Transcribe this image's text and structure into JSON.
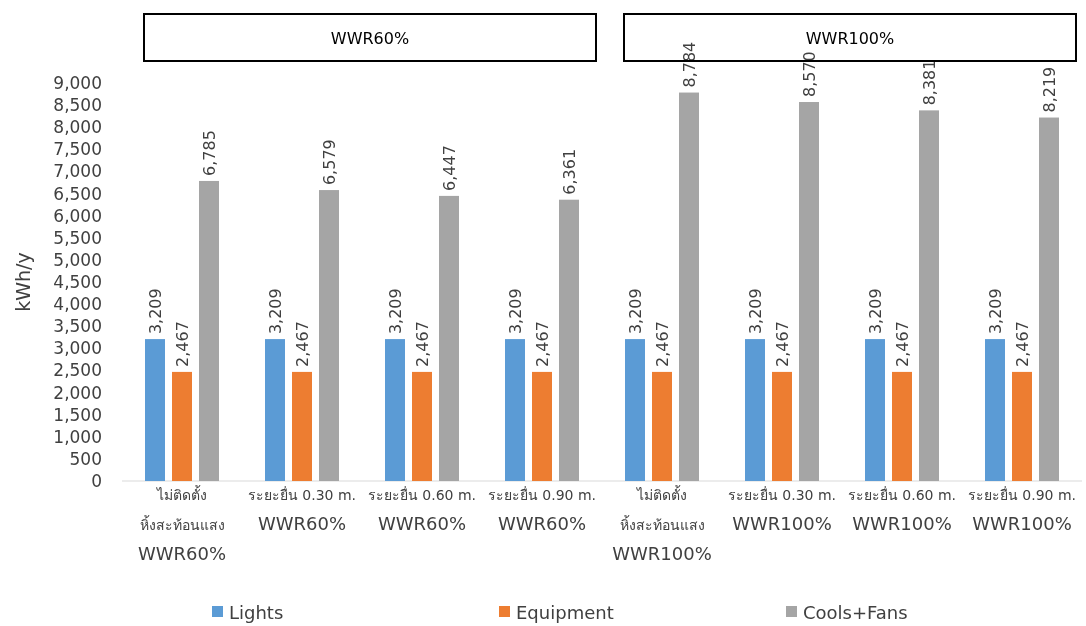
{
  "chart_data": {
    "type": "bar",
    "ylabel": "kWh/y",
    "categories": [
      "ไม่ติดตั้ง\nหิ้งสะท้อนแสง\nWWR60%",
      "ระยะยื่น 0.30 m.\nWWR60%",
      "ระยะยื่น 0.60 m.\nWWR60%",
      "ระยะยื่น 0.90 m.\nWWR60%",
      "ไม่ติดตั้ง\nหิ้งสะท้อนแสง\nWWR100%",
      "ระยะยื่น 0.30 m.\nWWR100%",
      "ระยะยื่น 0.60 m.\nWWR100%",
      "ระยะยื่น 0.90 m.\nWWR100%"
    ],
    "series": [
      {
        "name": "Lights",
        "color": "#5b9bd5",
        "values": [
          3209,
          3209,
          3209,
          3209,
          3209,
          3209,
          3209,
          3209
        ],
        "value_labels": [
          "3,209",
          "3,209",
          "3,209",
          "3,209",
          "3,209",
          "3,209",
          "3,209",
          "3,209"
        ]
      },
      {
        "name": "Equipment",
        "color": "#ed7d31",
        "values": [
          2467,
          2467,
          2467,
          2467,
          2467,
          2467,
          2467,
          2467
        ],
        "value_labels": [
          "2,467",
          "2,467",
          "2,467",
          "2,467",
          "2,467",
          "2,467",
          "2,467",
          "2,467"
        ]
      },
      {
        "name": "Cools+Fans",
        "color": "#a5a5a5",
        "values": [
          6785,
          6579,
          6447,
          6361,
          8784,
          8570,
          8381,
          8219
        ],
        "value_labels": [
          "6,785",
          "6,579",
          "6,447",
          "6,361",
          "8,784",
          "8,570",
          "8,381",
          "8,219"
        ]
      }
    ],
    "ylim": [
      0,
      9000
    ],
    "yticks": [
      0,
      {
        "value": 500,
        "label": "500"
      },
      {
        "value": 1000,
        "label": "1,000"
      },
      {
        "value": 1500,
        "label": "1,500"
      },
      {
        "value": 2000,
        "label": "2,000"
      },
      {
        "value": 2500,
        "label": "2,500"
      },
      {
        "value": 3000,
        "label": "3,000"
      },
      {
        "value": 3500,
        "label": "3,500"
      },
      {
        "value": 4000,
        "label": "4,000"
      },
      {
        "value": 4500,
        "label": "4,500"
      },
      {
        "value": 5000,
        "label": "5,000"
      },
      {
        "value": 5500,
        "label": "5,500"
      },
      {
        "value": 6000,
        "label": "6,000"
      },
      {
        "value": 6500,
        "label": "6,500"
      },
      {
        "value": 7000,
        "label": "7,000"
      },
      {
        "value": 7500,
        "label": "7,500"
      },
      {
        "value": 8000,
        "label": "8,000"
      },
      {
        "value": 8500,
        "label": "8,500"
      },
      {
        "value": 9000,
        "label": "9,000"
      }
    ],
    "annotations": [
      "WWR60%",
      "WWR100%"
    ],
    "grid": false,
    "legend": "bottom"
  }
}
